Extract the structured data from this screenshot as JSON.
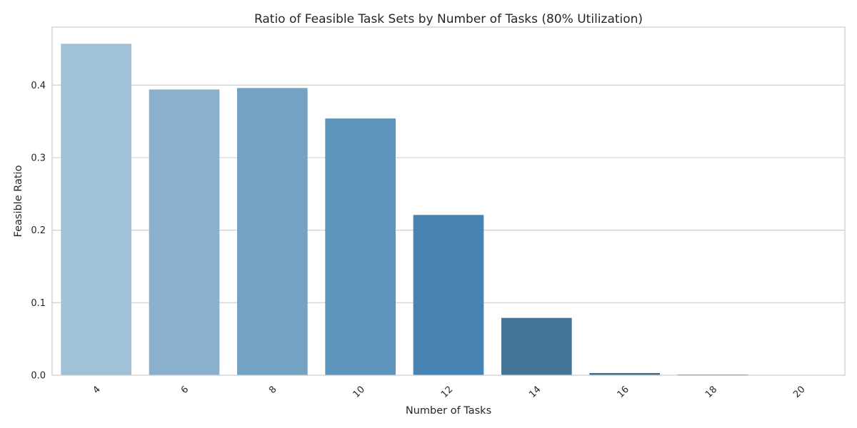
{
  "chart_data": {
    "type": "bar",
    "title": "Ratio of Feasible Task Sets by Number of Tasks (80% Utilization)",
    "xlabel": "Number of Tasks",
    "ylabel": "Feasible Ratio",
    "categories": [
      "4",
      "6",
      "8",
      "10",
      "12",
      "14",
      "16",
      "18",
      "20"
    ],
    "values": [
      0.457,
      0.394,
      0.396,
      0.354,
      0.221,
      0.079,
      0.003,
      0.001,
      0.0
    ],
    "colors": [
      "#a1c1d9",
      "#89b0cc",
      "#74a2c3",
      "#5c94bc",
      "#4884b3",
      "#437597",
      "#3c6d8f",
      "#3a6a8a",
      "#386686"
    ],
    "ylim": [
      0,
      0.48
    ],
    "yticks": [
      "0.0",
      "0.1",
      "0.2",
      "0.3",
      "0.4"
    ],
    "ytick_values": [
      0,
      0.1,
      0.2,
      0.3,
      0.4
    ],
    "grid": true,
    "xtick_rotation": "45 degrees",
    "legend": "none"
  }
}
